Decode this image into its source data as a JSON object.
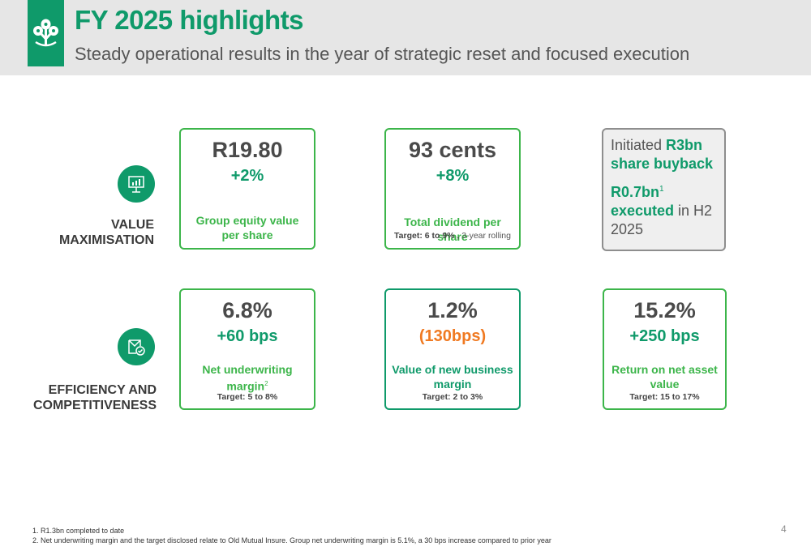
{
  "header": {
    "title": "FY 2025 highlights",
    "subtitle": "Steady operational results in the year of strategic reset and focused execution",
    "logo_icon": "old-mutual-tree-logo-icon"
  },
  "rows": {
    "value": {
      "label_line1": "VALUE",
      "label_line2": "MAXIMISATION",
      "icon": "presentation-chart-icon"
    },
    "efficiency": {
      "label_line1": "EFFICIENCY AND",
      "label_line2": "COMPETITIVENESS",
      "icon": "document-check-icon"
    }
  },
  "cards": {
    "equity": {
      "value": "R19.80",
      "change": "+2%",
      "desc_line1": "Group equity value",
      "desc_line2": "per share"
    },
    "dividend": {
      "value": "93 cents",
      "change": "+8%",
      "desc": "Total dividend per share",
      "target_bold": "Target: 6 to 9% ,",
      "target_rest": " 3-year rolling"
    },
    "buyback": {
      "pre1": "Initiated ",
      "hl1": "R3bn share buyback",
      "hl2": "R0.7bn",
      "sup": "1",
      "hl3": "executed",
      "post": " in H2 2025"
    },
    "nuw": {
      "value": "6.8%",
      "change": "+60 bps",
      "desc_line1": "Net underwriting",
      "desc_line2": "margin",
      "sup": "2",
      "target": "Target: 5 to 8%"
    },
    "vnb": {
      "value": "1.2%",
      "change": "(130bps)",
      "desc_line1": "Value of new business",
      "desc_line2": "margin",
      "target": "Target: 2 to 3%"
    },
    "ronav": {
      "value": "15.2%",
      "change": "+250 bps",
      "desc_line1": "Return on net asset",
      "desc_line2": "value",
      "target": "Target: 15 to 17%"
    }
  },
  "footnotes": {
    "note1": "1. R1.3bn completed to date",
    "note2": "2. Net underwriting margin and the target disclosed relate to Old Mutual Insure. Group net underwriting margin is 5.1%, a 30 bps increase compared to prior year"
  },
  "page_number": "4",
  "colors": {
    "brand_green": "#0f9a6a",
    "light_green": "#3cb54a",
    "negative_orange": "#f07a22",
    "header_grey": "#e6e6e6"
  }
}
